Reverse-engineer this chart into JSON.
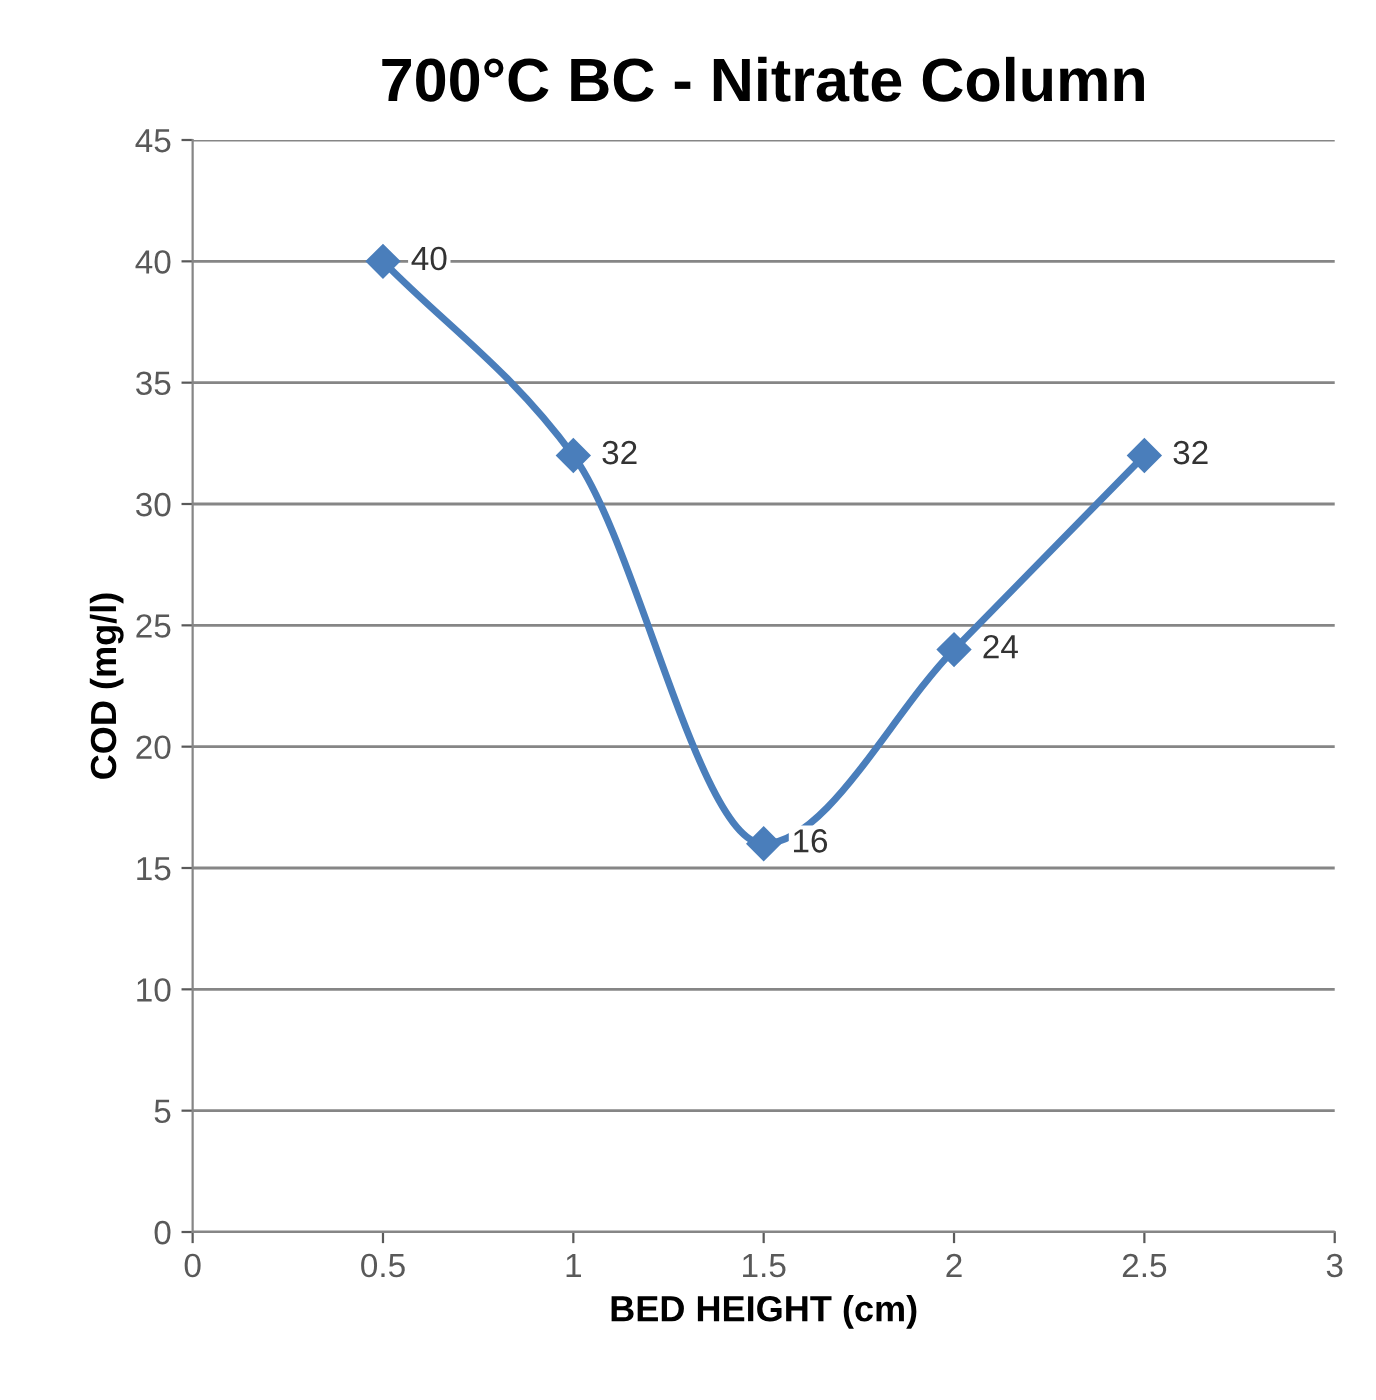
{
  "chart_data": {
    "type": "line",
    "title": "700°C BC - Nitrate Column",
    "xlabel": "BED HEIGHT (cm)",
    "ylabel": "COD (mg/l)",
    "x": [
      0.5,
      1,
      1.5,
      2,
      2.5
    ],
    "series": [
      {
        "color": "#4a7ebb",
        "values": [
          40,
          32,
          16,
          24,
          32
        ]
      }
    ],
    "xlim": [
      0,
      3
    ],
    "xticks": [
      0,
      0.5,
      1,
      1.5,
      2,
      2.5,
      3
    ],
    "ylim": [
      0,
      45
    ],
    "yticks": [
      0,
      5,
      10,
      15,
      20,
      25,
      30,
      35,
      40,
      45
    ],
    "grid": "y",
    "marker": "diamond",
    "line_style": "solid",
    "data_labels": true,
    "legend": false
  }
}
